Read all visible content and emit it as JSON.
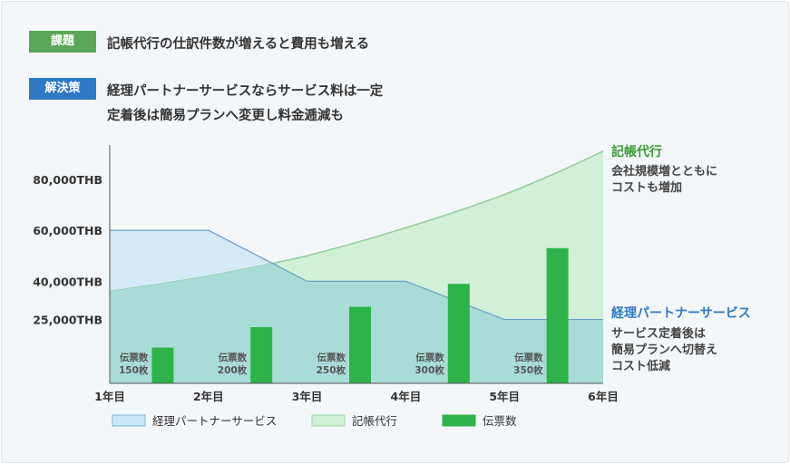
{
  "header": {
    "issue_badge": "課題",
    "issue_text": "記帳代行の仕訳件数が増えると費用も増える",
    "solution_badge": "解決策",
    "solution_line1": "経理パートナーサービスならサービス料は一定",
    "solution_line2": "定着後は簡易プランへ変更し料金逓減も"
  },
  "chart_data": {
    "type": "area",
    "categories": [
      "1年目",
      "2年目",
      "3年目",
      "4年目",
      "5年目",
      "6年目"
    ],
    "y_ticks": [
      25000,
      40000,
      60000,
      80000
    ],
    "y_tick_labels": [
      "25,000THB",
      "40,000THB",
      "60,000THB",
      "80,000THB"
    ],
    "ylim": [
      0,
      92000
    ],
    "grid": false,
    "legend_position": "bottom",
    "series": [
      {
        "name": "経理パートナーサービス",
        "kind": "area",
        "color": "#c9e6f6",
        "line_color": "#2f78c4",
        "points": [
          [
            0,
            60000
          ],
          [
            1,
            60000
          ],
          [
            2,
            40000
          ],
          [
            3,
            40000
          ],
          [
            4,
            25000
          ],
          [
            5,
            25000
          ]
        ]
      },
      {
        "name": "記帳代行",
        "kind": "area",
        "color": "#d2efd8",
        "line_color": "#8fce9c",
        "points": [
          [
            0,
            36000
          ],
          [
            1,
            42000
          ],
          [
            2,
            50000
          ],
          [
            3,
            61000
          ],
          [
            4,
            74000
          ],
          [
            5,
            91000
          ]
        ]
      },
      {
        "name": "伝票数",
        "kind": "bar",
        "color": "#2db34a",
        "bar_values": [
          14000,
          22000,
          30000,
          39000,
          53000
        ],
        "bar_labels": [
          [
            "伝票数",
            "150枚"
          ],
          [
            "伝票数",
            "200枚"
          ],
          [
            "伝票数",
            "250枚"
          ],
          [
            "伝票数",
            "300枚"
          ],
          [
            "伝票数",
            "350枚"
          ]
        ]
      }
    ],
    "right_annotations": {
      "bookkeeping_title": "記帳代行",
      "bookkeeping_line1": "会社規模増とともに",
      "bookkeeping_line2": "コストも増加",
      "partner_title": "経理パートナーサービス",
      "partner_line1": "サービス定着後は",
      "partner_line2": "簡易プランへ切替え",
      "partner_line3": "コスト低減"
    }
  },
  "colors": {
    "bookkeeping_title": "#3a9a36",
    "partner_title": "#2f78c4"
  }
}
